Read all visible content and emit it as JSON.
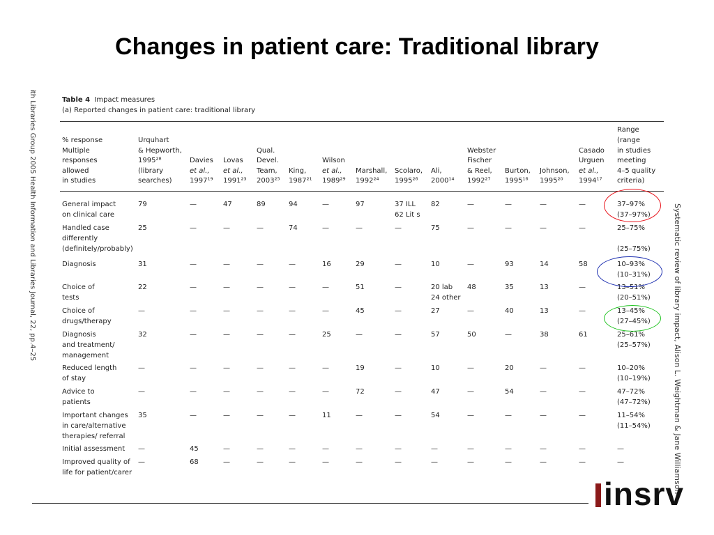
{
  "slide": {
    "title": "Changes in patient care: Traditional library"
  },
  "margins": {
    "left": "ith Libraries Group 2005  Health Information and Libraries Journal, 22, pp.4–25",
    "right": "Systematic review of library impact, Alison L. Weightman & Jane Williamson"
  },
  "table": {
    "label": "Table 4",
    "title": "Impact measures",
    "subtitle": "(a) Reported changes in patient care: traditional library",
    "headers": [
      {
        "lines": [
          "% response",
          "Multiple",
          "responses",
          "allowed",
          "in studies"
        ]
      },
      {
        "lines": [
          "Urquhart",
          "& Hepworth,",
          "1995²⁸",
          "(library",
          "searches)"
        ]
      },
      {
        "lines": [
          "Davies",
          "et al.,",
          "1997¹⁹"
        ]
      },
      {
        "lines": [
          "Lovas",
          "et al.,",
          "1991²³"
        ]
      },
      {
        "lines": [
          "Qual.",
          "Devel.",
          "Team,",
          "2003²⁵"
        ]
      },
      {
        "lines": [
          "King,",
          "1987²¹"
        ]
      },
      {
        "lines": [
          "Wilson",
          "et al.,",
          "1989²⁹"
        ]
      },
      {
        "lines": [
          "Marshall,",
          "1992²⁴"
        ]
      },
      {
        "lines": [
          "Scolaro,",
          "1995²⁶"
        ]
      },
      {
        "lines": [
          "Ali,",
          "2000¹⁴"
        ]
      },
      {
        "lines": [
          "Webster",
          "Fischer",
          "& Reel,",
          "1992²⁷"
        ]
      },
      {
        "lines": [
          "Burton,",
          "1995¹⁶"
        ]
      },
      {
        "lines": [
          "Johnson,",
          "1995²⁰"
        ]
      },
      {
        "lines": [
          "Casado",
          "Urguen",
          "et al.,",
          "1994¹⁷"
        ]
      },
      {
        "lines": [
          "Range",
          "(range",
          "in studies",
          "meeting",
          "4–5 quality",
          "criteria)"
        ]
      }
    ],
    "rows": [
      {
        "cells": [
          "General impact\non clinical care",
          "79",
          "—",
          "47",
          "89",
          "94",
          "—",
          "97",
          "37 ILL\n62 Lit s",
          "82",
          "—",
          "—",
          "—",
          "—",
          "37–97%\n(37–97%)"
        ]
      },
      {
        "cells": [
          "Handled case\ndifferently\n(definitely/probably)",
          "25",
          "—",
          "—",
          "—",
          "74",
          "—",
          "—",
          "—",
          "75",
          "—",
          "—",
          "—",
          "—",
          "25–75%\n\n(25–75%)"
        ]
      },
      {
        "cells": [
          "Diagnosis",
          "31",
          "—",
          "—",
          "—",
          "—",
          "16",
          "29",
          "—",
          "10",
          "—",
          "93",
          "14",
          "58",
          "10–93%\n(10–31%)"
        ]
      },
      {
        "cells": [
          "Choice of\ntests",
          "22",
          "—",
          "—",
          "—",
          "—",
          "—",
          "51",
          "—",
          "20 lab\n24 other",
          "48",
          "35",
          "13",
          "—",
          "13–51%\n(20–51%)"
        ]
      },
      {
        "cells": [
          "Choice of\ndrugs/therapy",
          "—",
          "—",
          "—",
          "—",
          "—",
          "—",
          "45",
          "—",
          "27",
          "—",
          "40",
          "13",
          "—",
          "13–45%\n(27–45%)"
        ]
      },
      {
        "cells": [
          "Diagnosis\nand treatment/\nmanagement",
          "32",
          "—",
          "—",
          "—",
          "—",
          "25",
          "—",
          "—",
          "57",
          "50",
          "—",
          "38",
          "61",
          "25–61%\n(25–57%)"
        ]
      },
      {
        "cells": [
          "Reduced length\nof stay",
          "—",
          "—",
          "—",
          "—",
          "—",
          "—",
          "19",
          "—",
          "10",
          "—",
          "20",
          "—",
          "—",
          "10–20%\n(10–19%)"
        ]
      },
      {
        "cells": [
          "Advice to\npatients",
          "—",
          "—",
          "—",
          "—",
          "—",
          "—",
          "72",
          "—",
          "47",
          "—",
          "54",
          "—",
          "—",
          "47–72%\n(47–72%)"
        ]
      },
      {
        "cells": [
          "Important changes\nin care/alternative\ntherapies/ referral",
          "35",
          "—",
          "—",
          "—",
          "—",
          "11",
          "—",
          "—",
          "54",
          "—",
          "—",
          "—",
          "—",
          "11–54%\n(11–54%)"
        ]
      },
      {
        "cells": [
          "Initial assessment",
          "—",
          "45",
          "—",
          "—",
          "—",
          "—",
          "—",
          "—",
          "—",
          "—",
          "—",
          "—",
          "—",
          "—"
        ]
      },
      {
        "cells": [
          "Improved quality of\nlife for patient/carer",
          "—",
          "68",
          "—",
          "—",
          "—",
          "—",
          "—",
          "—",
          "—",
          "—",
          "—",
          "—",
          "—",
          "—"
        ]
      }
    ]
  },
  "annotations": {
    "colors": {
      "red": "#e8141b",
      "blue": "#1d2fb0",
      "green": "#22c322"
    }
  },
  "logo": {
    "text": "insrv",
    "accent_color": "#8b1a1a"
  }
}
